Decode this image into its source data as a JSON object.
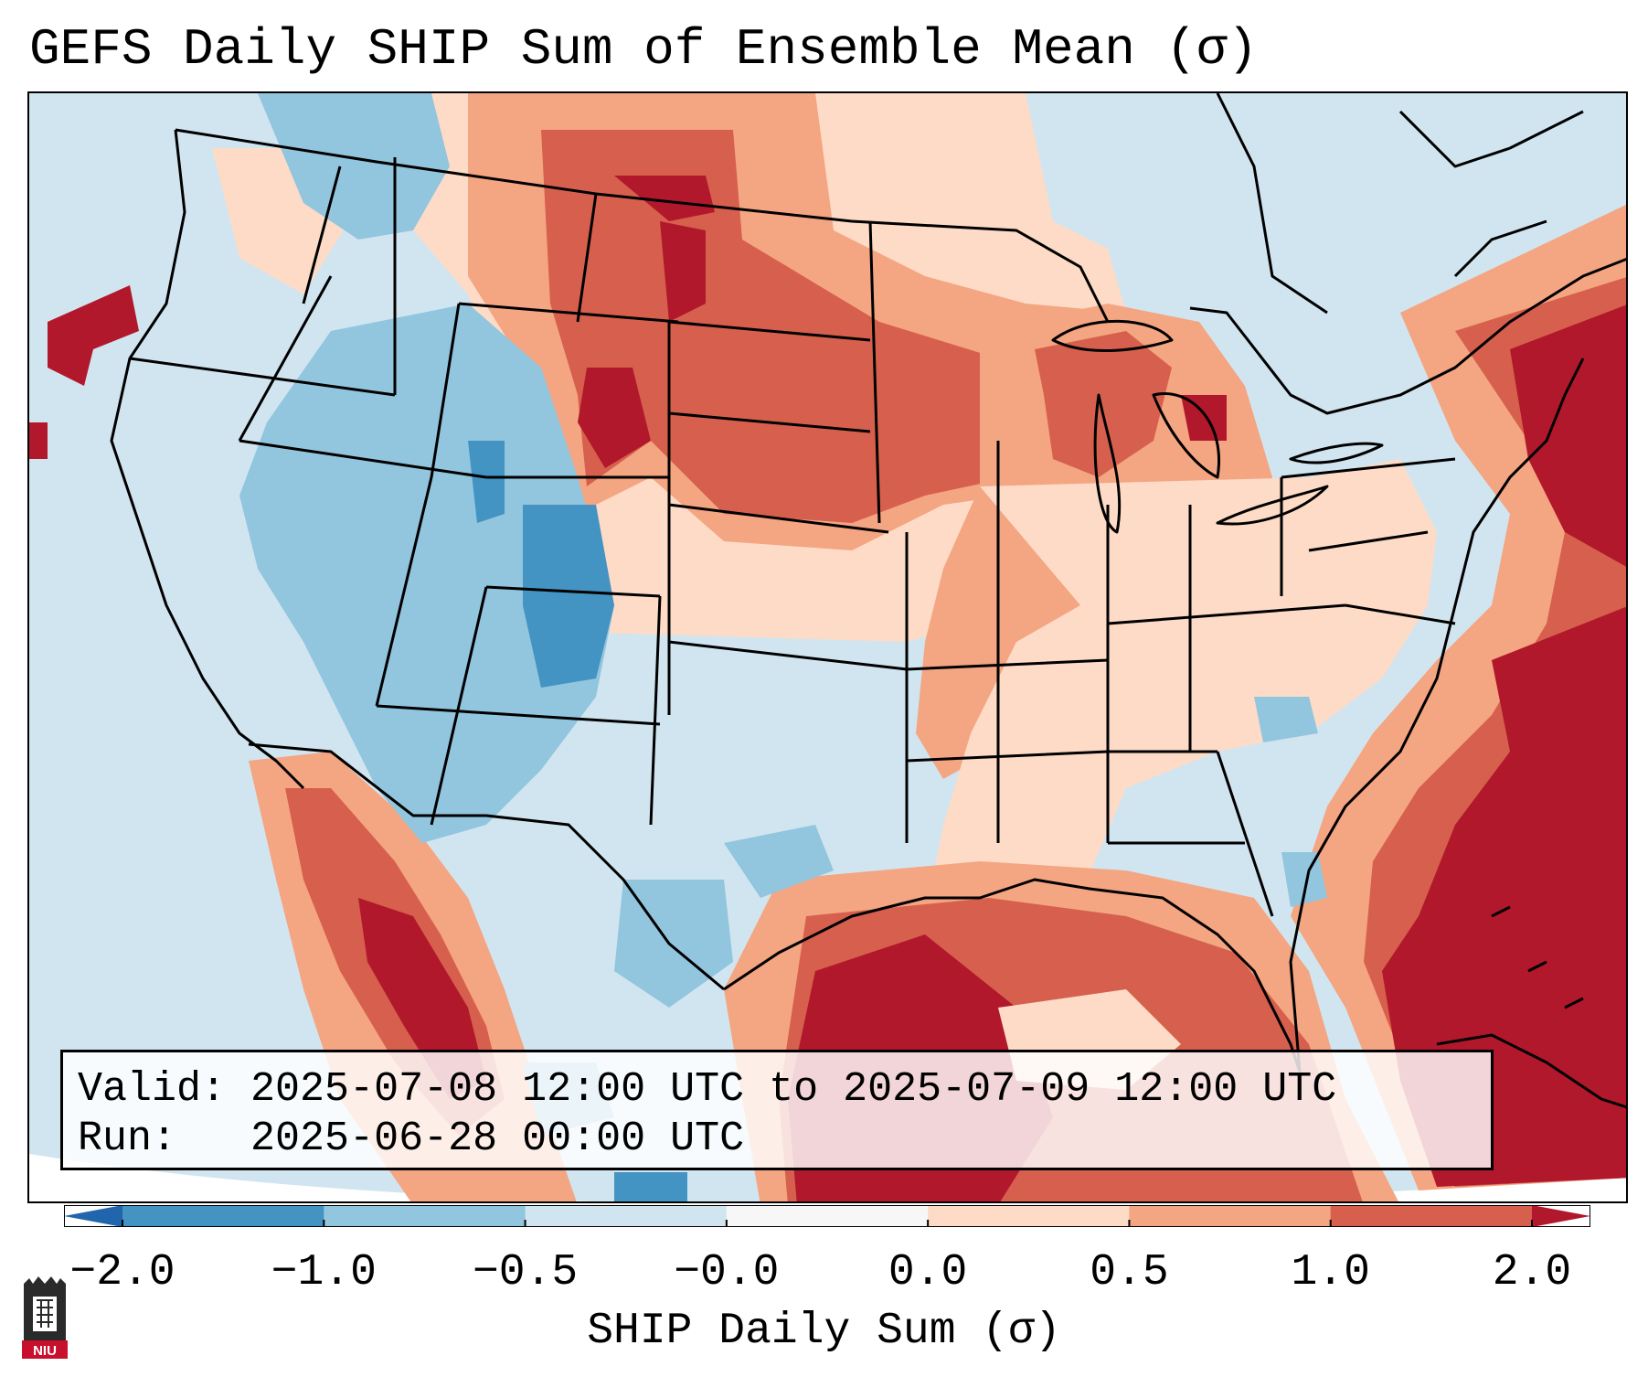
{
  "title": "GEFS Daily SHIP Sum of Ensemble Mean (σ)",
  "info": {
    "valid_label": "Valid:",
    "valid_value": "2025-07-08 12:00 UTC to 2025-07-09 12:00 UTC",
    "run_label": "Run:",
    "run_value": "2025-06-28 00:00 UTC"
  },
  "colorbar": {
    "label": "SHIP Daily Sum (σ)",
    "ticks": [
      "−2.0",
      "−1.0",
      "−0.5",
      "−0.0",
      "0.0",
      "0.5",
      "1.0",
      "2.0"
    ],
    "bins": [
      {
        "range": "< -2.0",
        "color": "#2166ac"
      },
      {
        "range": "-2.0 to -1.0",
        "color": "#4393c3"
      },
      {
        "range": "-1.0 to -0.5",
        "color": "#92c5de"
      },
      {
        "range": "-0.5 to -0.0",
        "color": "#d1e5f0"
      },
      {
        "range": "-0.0 to 0.0",
        "color": "#f7f7f7"
      },
      {
        "range": "0.0 to 0.5",
        "color": "#fddbc7"
      },
      {
        "range": "0.5 to 1.0",
        "color": "#f4a582"
      },
      {
        "range": "1.0 to 2.0",
        "color": "#d6604d"
      },
      {
        "range": "> 2.0",
        "color": "#b2182b"
      }
    ]
  },
  "logo": {
    "text": "NIU",
    "color": "#c8102e"
  },
  "map": {
    "region": "Contiguous United States with parts of Canada, Mexico and the Caribbean",
    "field": "GEFS SHIP daily sum anomaly (σ)",
    "ocean_outside_domain_color": "#ffffff",
    "line_color": "#000000"
  }
}
